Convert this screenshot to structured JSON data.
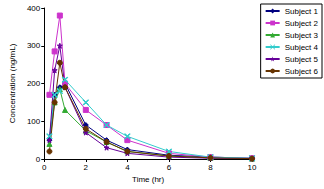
{
  "chart_data": {
    "type": "line",
    "x_label": "Time (hr)",
    "y_label": "Concentration (ng/mL)",
    "x": [
      0.25,
      0.5,
      0.75,
      1,
      2,
      3,
      4,
      6,
      8,
      10
    ],
    "series": [
      {
        "name": "Subject 1",
        "color": "#000080",
        "marker": "diamond",
        "values": [
          50,
          170,
          190,
          200,
          90,
          50,
          25,
          10,
          5,
          2
        ]
      },
      {
        "name": "Subject 2",
        "color": "#cc33cc",
        "marker": "square",
        "values": [
          170,
          285,
          380,
          200,
          130,
          90,
          50,
          15,
          5,
          2
        ]
      },
      {
        "name": "Subject 3",
        "color": "#33aa33",
        "marker": "triangle",
        "values": [
          40,
          150,
          185,
          130,
          75,
          45,
          20,
          8,
          3,
          1
        ]
      },
      {
        "name": "Subject 4",
        "color": "#33cccc",
        "marker": "x",
        "values": [
          60,
          170,
          180,
          210,
          150,
          90,
          60,
          20,
          5,
          2
        ]
      },
      {
        "name": "Subject 5",
        "color": "#660099",
        "marker": "star",
        "values": [
          50,
          235,
          300,
          190,
          70,
          30,
          15,
          5,
          2,
          1
        ]
      },
      {
        "name": "Subject 6",
        "color": "#663300",
        "marker": "circle",
        "values": [
          20,
          150,
          255,
          190,
          80,
          45,
          20,
          8,
          3,
          1
        ]
      }
    ],
    "xlim": [
      0,
      10
    ],
    "xticks": [
      0,
      2,
      4,
      6,
      8,
      10
    ],
    "ylim": [
      0,
      400
    ],
    "yticks": [
      0,
      100,
      200,
      300,
      400
    ],
    "grid": false,
    "legend": "right"
  }
}
